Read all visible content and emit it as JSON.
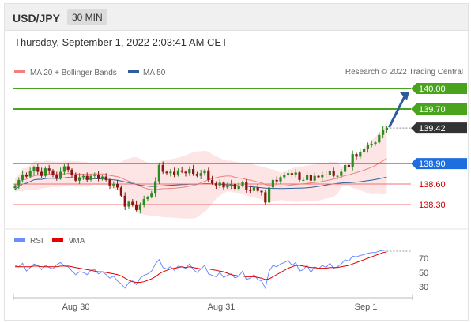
{
  "header": {
    "symbol": "USD/JPY",
    "timeframe": "30 MIN"
  },
  "timestamp": "Thursday, September 1, 2022 2:03:41 AM CET",
  "credit": "Research © 2022 Trading Central",
  "colors": {
    "up": "#2e8b22",
    "down": "#8b1414",
    "ma20": "#f08080",
    "ma50": "#2f5f9a",
    "green_level": "#4aa31c",
    "blue_level": "#1e6ee0",
    "red_level": "#f07070",
    "price_label": "#333333",
    "arrow": "#2d5b9a",
    "rsi": "#6b8cff",
    "ma9": "#e00000"
  },
  "chart_data": [
    {
      "type": "candlestick",
      "title": "",
      "legend": [
        {
          "name": "MA 20 + Bollinger Bands",
          "color": "#f08080"
        },
        {
          "name": "MA 50",
          "color": "#2f5f9a"
        }
      ],
      "x_ticks": [
        "Aug 30",
        "Aug 31",
        "Sep 1"
      ],
      "ylim": [
        137.97,
        140.25
      ],
      "last_price": 139.42,
      "levels": [
        {
          "value": 140.0,
          "label": "140.00",
          "kind": "resistance"
        },
        {
          "value": 139.7,
          "label": "139.70",
          "kind": "resistance"
        },
        {
          "value": 139.42,
          "label": "139.42",
          "kind": "last"
        },
        {
          "value": 138.9,
          "label": "138.90",
          "kind": "pivot"
        },
        {
          "value": 138.6,
          "label": "138.60",
          "kind": "support"
        },
        {
          "value": 138.3,
          "label": "138.30",
          "kind": "support"
        }
      ],
      "closes": [
        138.58,
        138.66,
        138.74,
        138.71,
        138.79,
        138.85,
        138.78,
        138.72,
        138.83,
        138.8,
        138.74,
        138.68,
        138.78,
        138.86,
        138.81,
        138.73,
        138.65,
        138.7,
        138.72,
        138.66,
        138.72,
        138.73,
        138.68,
        138.71,
        138.66,
        138.58,
        138.6,
        138.55,
        138.43,
        138.27,
        138.34,
        138.3,
        138.22,
        138.3,
        138.38,
        138.41,
        138.46,
        138.64,
        138.88,
        138.78,
        138.76,
        138.78,
        138.74,
        138.8,
        138.78,
        138.76,
        138.82,
        138.75,
        138.72,
        138.76,
        138.8,
        138.66,
        138.61,
        138.58,
        138.62,
        138.55,
        138.58,
        138.6,
        138.53,
        138.57,
        138.63,
        138.52,
        138.5,
        138.55,
        138.5,
        138.48,
        138.33,
        138.55,
        138.66,
        138.64,
        138.7,
        138.73,
        138.76,
        138.74,
        138.77,
        138.66,
        138.66,
        138.73,
        138.65,
        138.72,
        138.7,
        138.74,
        138.73,
        138.79,
        138.72,
        138.72,
        138.78,
        138.88,
        138.85,
        139.04,
        139.0,
        139.07,
        139.11,
        139.18,
        139.19,
        139.21,
        139.32,
        139.39,
        139.42
      ]
    },
    {
      "type": "line",
      "title": "",
      "series": [
        {
          "name": "RSI",
          "color": "#6b8cff"
        },
        {
          "name": "9MA",
          "color": "#e00000"
        }
      ],
      "y_ticks": [
        70,
        50,
        30
      ],
      "ylim": [
        20,
        80
      ],
      "rsi": [
        60,
        58,
        63,
        52,
        57,
        62,
        60,
        54,
        60,
        57,
        55,
        61,
        64,
        59,
        58,
        52,
        47,
        51,
        50,
        47,
        53,
        54,
        48,
        51,
        47,
        42,
        45,
        38,
        34,
        28,
        36,
        38,
        33,
        42,
        46,
        48,
        52,
        62,
        68,
        57,
        55,
        58,
        53,
        59,
        58,
        56,
        62,
        54,
        50,
        55,
        60,
        48,
        46,
        44,
        50,
        43,
        46,
        48,
        42,
        45,
        52,
        40,
        42,
        47,
        40,
        38,
        28,
        52,
        60,
        58,
        62,
        64,
        67,
        60,
        64,
        52,
        54,
        60,
        50,
        58,
        55,
        60,
        57,
        63,
        56,
        58,
        62,
        68,
        66,
        73,
        72,
        74,
        75,
        77,
        78,
        78,
        80,
        81,
        82
      ],
      "ma9": [
        58,
        58,
        58,
        58,
        58,
        59,
        59,
        58,
        58,
        58,
        58,
        58,
        59,
        59,
        59,
        58,
        57,
        56,
        55,
        54,
        53,
        52,
        51,
        51,
        50,
        49,
        48,
        47,
        45,
        42,
        39,
        37,
        36,
        36,
        37,
        39,
        41,
        44,
        48,
        51,
        53,
        55,
        56,
        57,
        58,
        57,
        58,
        57,
        56,
        55,
        55,
        55,
        54,
        53,
        52,
        51,
        49,
        47,
        46,
        45,
        45,
        44,
        44,
        44,
        43,
        42,
        40,
        41,
        44,
        47,
        50,
        53,
        56,
        58,
        60,
        60,
        59,
        58,
        57,
        57,
        56,
        56,
        56,
        57,
        57,
        57,
        58,
        59,
        60,
        62,
        64,
        66,
        68,
        70,
        72,
        74,
        76,
        78,
        79
      ]
    }
  ]
}
